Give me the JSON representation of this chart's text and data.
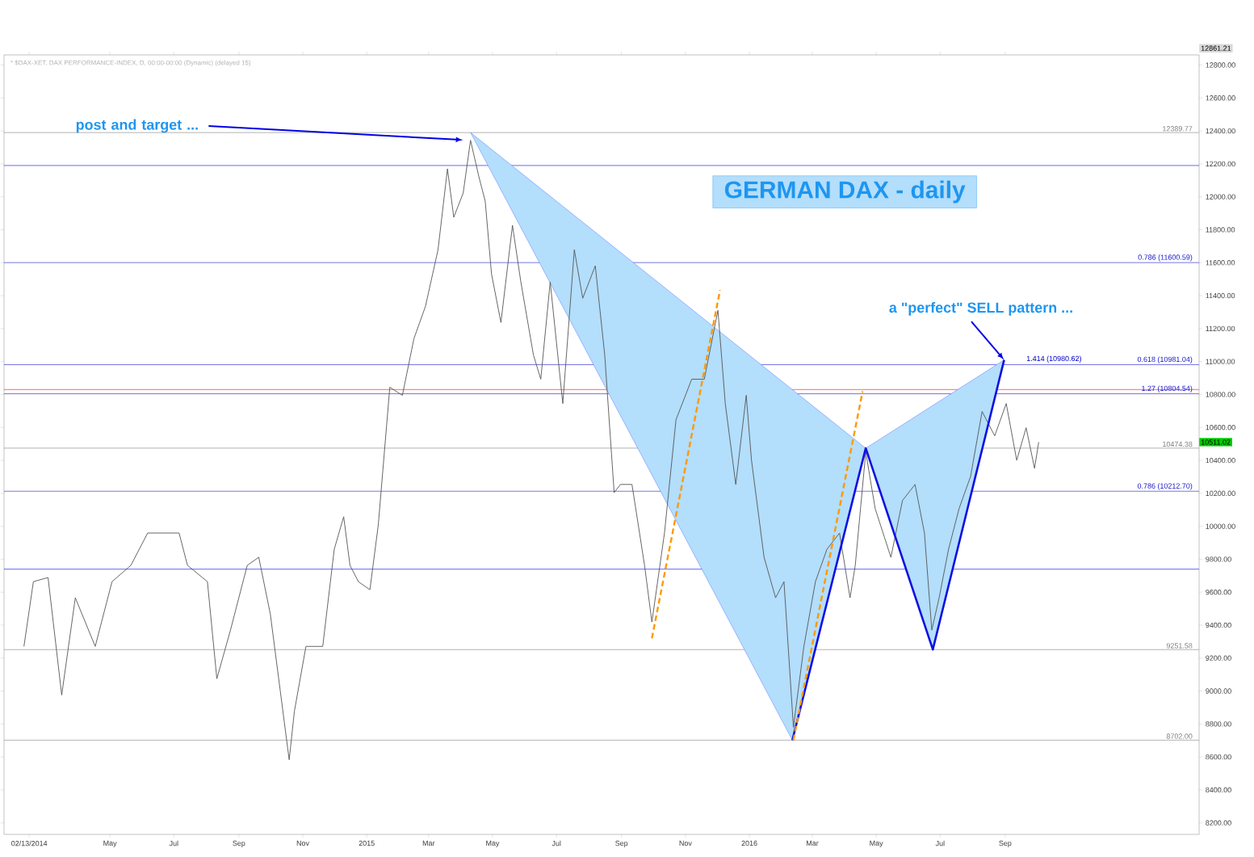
{
  "chart_data": {
    "type": "line",
    "title": "GERMAN DAX - daily",
    "subtitle": "* $DAX-XET, DAX PERFORMANCE-INDEX, D, 00:00-00:00 (Dynamic) (delayed 15)",
    "xlim": [
      "2014-01-20",
      "2017-03-05"
    ],
    "xticks": [
      {
        "value": "2014-02-13",
        "label": "02/13/2014"
      },
      {
        "value": "2014-05-01",
        "label": "May"
      },
      {
        "value": "2014-07-01",
        "label": "Jul"
      },
      {
        "value": "2014-09-01",
        "label": "Sep"
      },
      {
        "value": "2014-11-01",
        "label": "Nov"
      },
      {
        "value": "2015-01-01",
        "label": "2015"
      },
      {
        "value": "2015-03-01",
        "label": "Mar"
      },
      {
        "value": "2015-05-01",
        "label": "May"
      },
      {
        "value": "2015-07-01",
        "label": "Jul"
      },
      {
        "value": "2015-09-01",
        "label": "Sep"
      },
      {
        "value": "2015-11-01",
        "label": "Nov"
      },
      {
        "value": "2016-01-01",
        "label": "2016"
      },
      {
        "value": "2016-03-01",
        "label": "Mar"
      },
      {
        "value": "2016-05-01",
        "label": "May"
      },
      {
        "value": "2016-07-01",
        "label": "Jul"
      },
      {
        "value": "2016-09-01",
        "label": "Sep"
      }
    ],
    "ylim": [
      8130,
      12861.21
    ],
    "yticks": [
      {
        "value": 8200,
        "label": "8200.00"
      },
      {
        "value": 8400,
        "label": "8400.00"
      },
      {
        "value": 8600,
        "label": "8600.00"
      },
      {
        "value": 8800,
        "label": "8800.00"
      },
      {
        "value": 9000,
        "label": "9000.00"
      },
      {
        "value": 9200,
        "label": "9200.00"
      },
      {
        "value": 9400,
        "label": "9400.00"
      },
      {
        "value": 9600,
        "label": "9600.00"
      },
      {
        "value": 9800,
        "label": "9800.00"
      },
      {
        "value": 10000,
        "label": "10000.00"
      },
      {
        "value": 10200,
        "label": "10200.00"
      },
      {
        "value": 10400,
        "label": "10400.00"
      },
      {
        "value": 10600,
        "label": "10600.00"
      },
      {
        "value": 10800,
        "label": "10800.00"
      },
      {
        "value": 11000,
        "label": "11000.00"
      },
      {
        "value": 11200,
        "label": "11200.00"
      },
      {
        "value": 11400,
        "label": "11400.00"
      },
      {
        "value": 11600,
        "label": "11600.00"
      },
      {
        "value": 11800,
        "label": "11800.00"
      },
      {
        "value": 12000,
        "label": "12000.00"
      },
      {
        "value": 12200,
        "label": "12200.00"
      },
      {
        "value": 12400,
        "label": "12400.00"
      },
      {
        "value": 12600,
        "label": "12600.00"
      },
      {
        "value": 12800,
        "label": "12800.00"
      }
    ],
    "series": [
      {
        "type": "area",
        "color": "#b3defc",
        "x": [
          "2015-04-10",
          "2016-02-11",
          "2016-04-21"
        ],
        "values": [
          12390,
          8702,
          10474
        ]
      },
      {
        "type": "area",
        "color": "#b3defc",
        "x": [
          "2016-04-21",
          "2016-06-24",
          "2016-08-31"
        ],
        "values": [
          10474,
          9252,
          11010
        ]
      },
      {
        "color": "#555555",
        "x": [
          "2014-02-08",
          "2014-02-17",
          "2014-03-03",
          "2014-03-16",
          "2014-03-29",
          "2014-04-17",
          "2014-05-03",
          "2014-05-21",
          "2014-06-06",
          "2014-06-25",
          "2014-07-06",
          "2014-07-14",
          "2014-08-02",
          "2014-08-11",
          "2014-08-24",
          "2014-09-09",
          "2014-09-20",
          "2014-10-01",
          "2014-10-19",
          "2014-10-24",
          "2014-11-04",
          "2014-11-20",
          "2014-12-01",
          "2014-12-10",
          "2014-12-16",
          "2014-12-24",
          "2015-01-04",
          "2015-01-12",
          "2015-01-23",
          "2015-02-04",
          "2015-02-15",
          "2015-02-26",
          "2015-03-10",
          "2015-03-19",
          "2015-03-25",
          "2015-04-03",
          "2015-04-10",
          "2015-04-18",
          "2015-04-24",
          "2015-04-30",
          "2015-05-09",
          "2015-05-20",
          "2015-05-28",
          "2015-06-09",
          "2015-06-16",
          "2015-06-25",
          "2015-07-07",
          "2015-07-18",
          "2015-07-26",
          "2015-08-07",
          "2015-08-16",
          "2015-08-25",
          "2015-08-31",
          "2015-09-11",
          "2015-09-23",
          "2015-09-30",
          "2015-10-12",
          "2015-10-23",
          "2015-11-07",
          "2015-11-19",
          "2015-12-02",
          "2015-12-09",
          "2015-12-19",
          "2015-12-29",
          "2016-01-03",
          "2016-01-15",
          "2016-01-26",
          "2016-02-03",
          "2016-02-12",
          "2016-02-22",
          "2016-03-04",
          "2016-03-15",
          "2016-03-27",
          "2016-04-06",
          "2016-04-11",
          "2016-04-21",
          "2016-04-30",
          "2016-05-15",
          "2016-05-26",
          "2016-06-07",
          "2016-06-16",
          "2016-06-23",
          "2016-06-30",
          "2016-07-09",
          "2016-07-19",
          "2016-07-30",
          "2016-08-10",
          "2016-08-22",
          "2016-09-02",
          "2016-09-12",
          "2016-09-21",
          "2016-09-29",
          "2016-10-03"
        ],
        "values": [
          9271,
          9664,
          9689,
          8976,
          9566,
          9271,
          9664,
          9763,
          9959,
          9959,
          9959,
          9763,
          9664,
          9075,
          9370,
          9763,
          9812,
          9468,
          8583,
          8878,
          9271,
          9271,
          9861,
          10058,
          9763,
          9664,
          9615,
          10008,
          10844,
          10795,
          11139,
          11335,
          11679,
          12170,
          11876,
          12023,
          12343,
          12121,
          11974,
          11532,
          11237,
          11827,
          11483,
          11040,
          10893,
          11483,
          10745,
          11679,
          11384,
          11581,
          11040,
          10205,
          10254,
          10254,
          9763,
          9419,
          9959,
          10647,
          10893,
          10893,
          11311,
          10745,
          10254,
          10795,
          10401,
          9812,
          9566,
          9664,
          8780,
          9271,
          9664,
          9861,
          9959,
          9566,
          9763,
          10451,
          10107,
          9812,
          10156,
          10254,
          9959,
          9370,
          9566,
          9861,
          10107,
          10303,
          10697,
          10549,
          10745,
          10401,
          10598,
          10352,
          10511
        ]
      },
      {
        "color": "#1010e0",
        "x": [
          "2016-02-11",
          "2016-04-21",
          "2016-06-24",
          "2016-08-31"
        ],
        "values": [
          8702,
          10474,
          9252,
          11010
        ]
      },
      {
        "color": "#ff9900",
        "line_style": "dashed",
        "x": [
          "2015-09-30",
          "2015-12-04"
        ],
        "values": [
          9320,
          11433
        ]
      },
      {
        "color": "#ff9900",
        "line_style": "dashed",
        "x": [
          "2016-02-12",
          "2016-04-18"
        ],
        "values": [
          8702,
          10819
        ]
      }
    ],
    "ref_lines": [
      {
        "axis": "y",
        "value": 12389.77,
        "label": "12389.77",
        "color": "#808080"
      },
      {
        "axis": "y",
        "value": 12190,
        "color": "#0000ff"
      },
      {
        "axis": "y",
        "value": 11600.59,
        "label": "0.786 (11600.59)",
        "color": "#1a1acc"
      },
      {
        "axis": "y",
        "value": 10981.04,
        "label": "0.618 (10981.04)",
        "color": "#1a1acc"
      },
      {
        "axis": "y",
        "value": 10830,
        "color": "#ff0000"
      },
      {
        "axis": "y",
        "value": 10804.54,
        "label": "1.27 (10804.54)",
        "color": "#1a1acc"
      },
      {
        "axis": "y",
        "value": 10474.38,
        "label": "10474.38",
        "color": "#808080"
      },
      {
        "axis": "y",
        "value": 10212.7,
        "label": "0.786 (10212.70)",
        "color": "#1a1acc"
      },
      {
        "axis": "y",
        "value": 9740,
        "color": "#0000ff"
      },
      {
        "axis": "y",
        "value": 9251.58,
        "label": "9251.58",
        "color": "#808080"
      },
      {
        "axis": "y",
        "value": 8702.0,
        "label": "8702.00",
        "color": "#808080"
      }
    ],
    "annotations": [
      "post and target ...",
      {
        "text": "a \"perfect\" SELL pattern ...",
        "x": "2016-08-31",
        "y": 11010
      },
      "10511.02",
      "12861.21",
      {
        "text": "1.414 (10980.62)",
        "x": "2016-09-20",
        "y": 10980.62
      }
    ],
    "grid": false
  }
}
